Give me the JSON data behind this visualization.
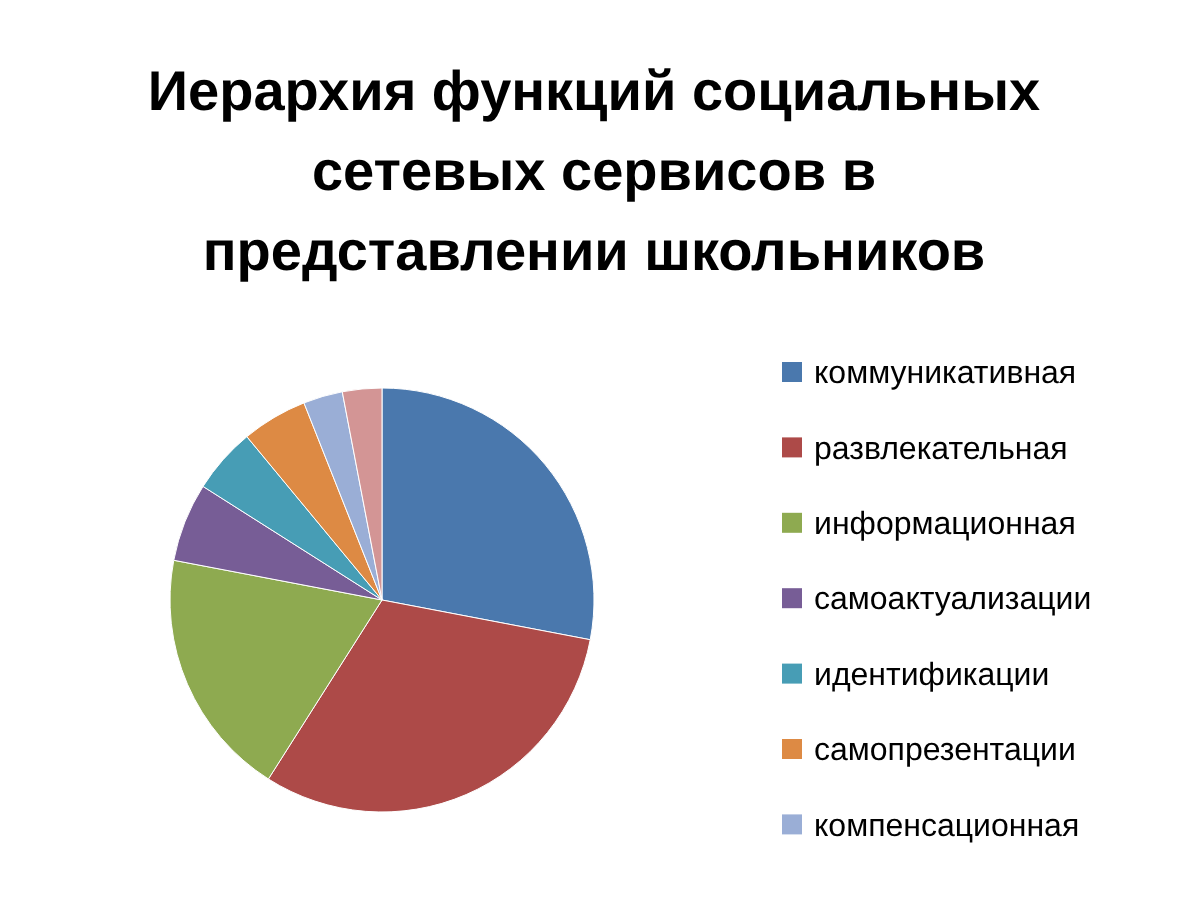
{
  "chart_data": {
    "type": "pie",
    "title": "Иерархия функций социальных сетевых сервисов в представлении школьников",
    "categories": [
      "коммуникативная",
      "развлекательная",
      "информационная",
      "самоактуализации",
      "идентификации",
      "самопрезентации",
      "компенсационная",
      null
    ],
    "values": [
      28,
      31,
      19,
      6,
      5,
      5,
      3,
      3
    ],
    "colors": [
      "#4a78ad",
      "#ad4a48",
      "#8eaa50",
      "#775d96",
      "#479db5",
      "#dd8a44",
      "#9aaed6",
      "#d39595"
    ],
    "legend": "right"
  }
}
